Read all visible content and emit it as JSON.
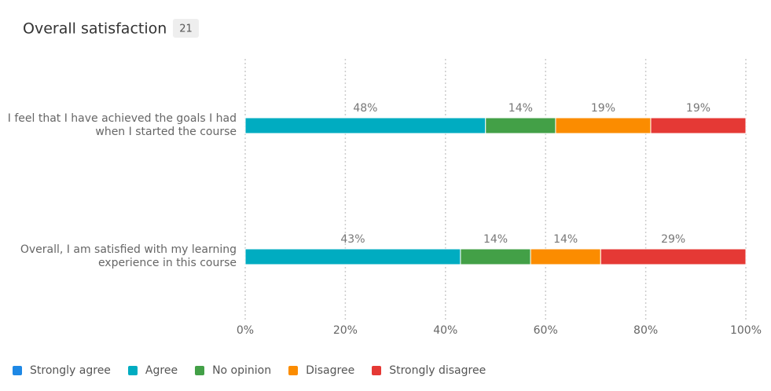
{
  "chart_data": {
    "type": "stacked-bar-horizontal",
    "title": "Overall satisfaction",
    "badge": "21",
    "categories": [
      "I feel that I have achieved the goals I had when I started the course",
      "Overall, I am satisfied with my learning experience in this course"
    ],
    "series": [
      {
        "name": "Strongly agree",
        "color": "#1e88e5",
        "values": [
          0,
          0
        ]
      },
      {
        "name": "Agree",
        "color": "#00acc1",
        "values": [
          48,
          43
        ],
        "value_labels": [
          "48%",
          "43%"
        ]
      },
      {
        "name": "No opinion",
        "color": "#43a047",
        "values": [
          14,
          14
        ],
        "value_labels": [
          "14%",
          "14%"
        ]
      },
      {
        "name": "Disagree",
        "color": "#fb8c00",
        "values": [
          19,
          14
        ],
        "value_labels": [
          "19%",
          "14%"
        ]
      },
      {
        "name": "Strongly disagree",
        "color": "#e53935",
        "values": [
          19,
          29
        ],
        "value_labels": [
          "19%",
          "29%"
        ]
      }
    ],
    "xlim": [
      0,
      100
    ],
    "xticks": [
      {
        "value": 0,
        "label": "0%"
      },
      {
        "value": 20,
        "label": "20%"
      },
      {
        "value": 40,
        "label": "40%"
      },
      {
        "value": 60,
        "label": "60%"
      },
      {
        "value": 80,
        "label": "80%"
      },
      {
        "value": 100,
        "label": "100%"
      }
    ],
    "grid": true,
    "legend": "bottom-left"
  }
}
